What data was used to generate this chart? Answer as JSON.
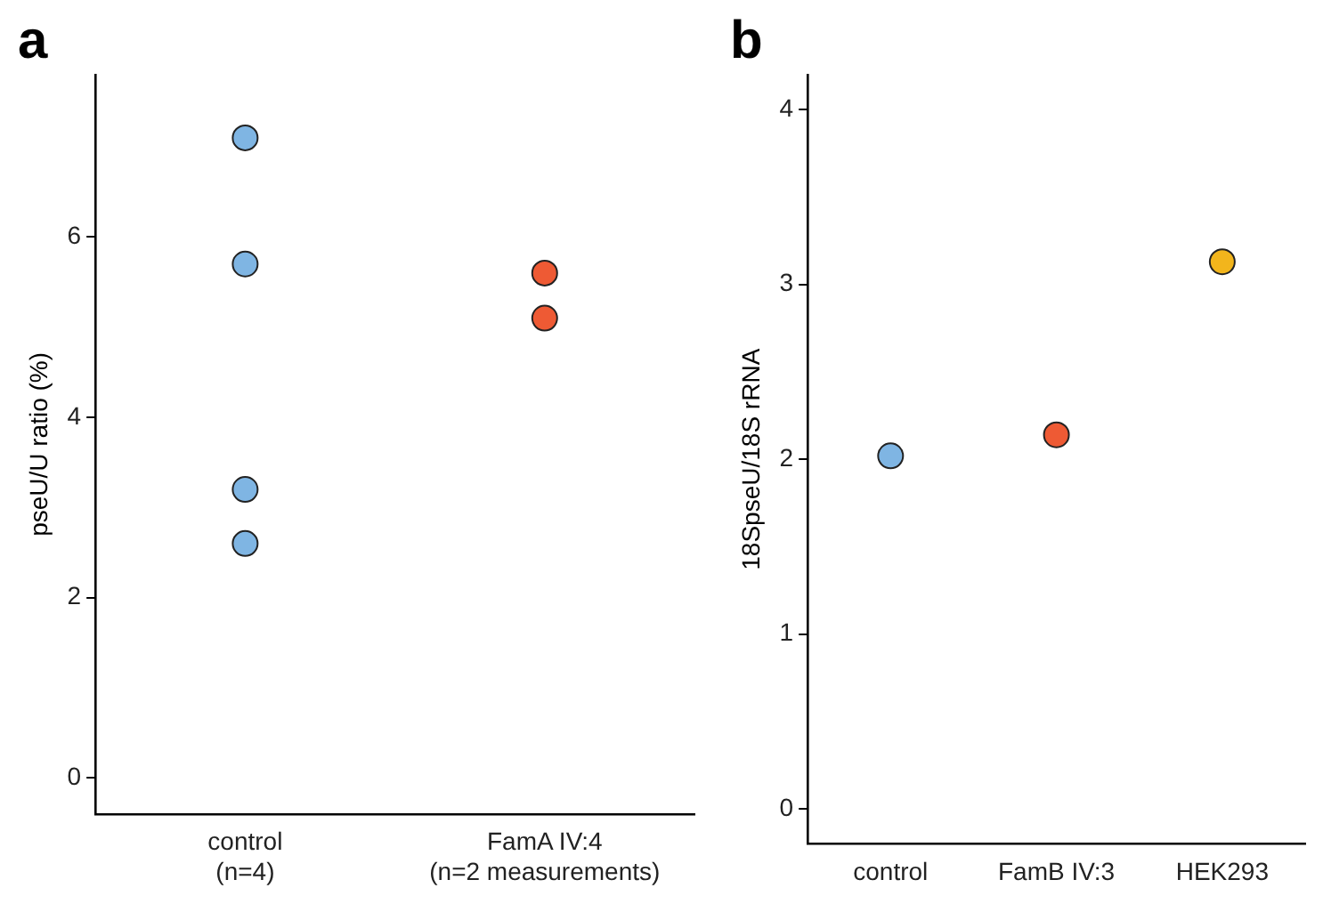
{
  "chart_data": [
    {
      "type": "scatter",
      "title": "a",
      "ylabel": "pseU/U ratio (%)",
      "categories": [
        "control\n(n=4)",
        "FamA IV:4\n(n=2 measurements)"
      ],
      "ylim": [
        -0.4,
        7.8
      ],
      "yticks": [
        0,
        2,
        4,
        6
      ],
      "grid": false,
      "legend": false,
      "marker": "circle",
      "series": [
        {
          "color": "#7fb5e3",
          "x": [
            "control\n(n=4)",
            "control\n(n=4)",
            "control\n(n=4)",
            "control\n(n=4)"
          ],
          "values": [
            7.1,
            5.7,
            3.2,
            2.6
          ]
        },
        {
          "color": "#ee5a34",
          "x": [
            "FamA IV:4\n(n=2 measurements)",
            "FamA IV:4\n(n=2 measurements)"
          ],
          "values": [
            5.6,
            5.1
          ]
        }
      ]
    },
    {
      "type": "scatter",
      "title": "b",
      "ylabel": "18SpseU/18S rRNA",
      "categories": [
        "control",
        "FamB IV:3",
        "HEK293"
      ],
      "ylim": [
        -0.2,
        4.2
      ],
      "yticks": [
        0,
        1,
        2,
        3,
        4
      ],
      "grid": false,
      "legend": false,
      "marker": "circle",
      "series": [
        {
          "color": "#7fb5e3",
          "x": [
            "control"
          ],
          "values": [
            2.02
          ]
        },
        {
          "color": "#ee5a34",
          "x": [
            "FamB IV:3"
          ],
          "values": [
            2.14
          ]
        },
        {
          "color": "#f2b51c",
          "x": [
            "HEK293"
          ],
          "values": [
            3.13
          ]
        }
      ]
    }
  ]
}
